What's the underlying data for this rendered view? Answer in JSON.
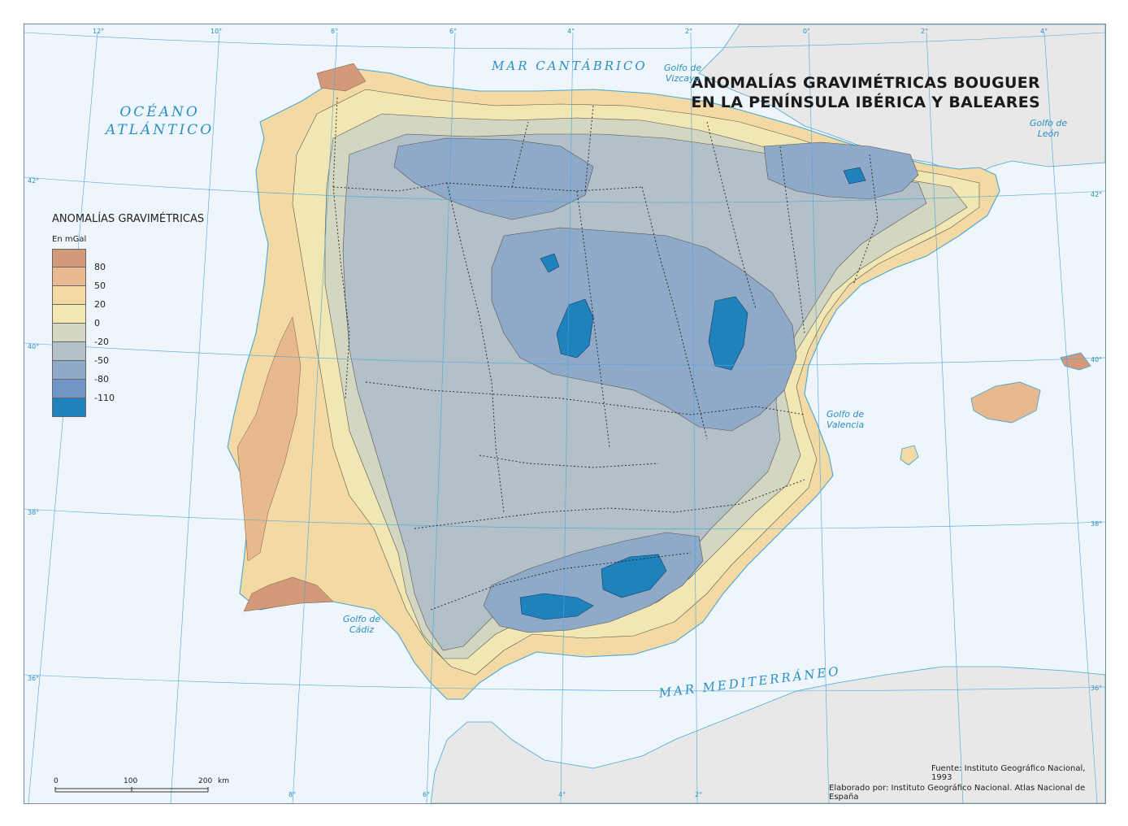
{
  "title": {
    "line1": "ANOMALÍAS GRAVIMÉTRICAS BOUGUER",
    "line2": "EN LA PENÍNSULA IBÉRICA Y BALEARES"
  },
  "seas": {
    "atlantic_line1": "OCÉANO",
    "atlantic_line2": "ATLÁNTICO",
    "cantabrico": "MAR CANTÁBRICO",
    "mediterraneo": "MAR MEDITERRÁNEO"
  },
  "gulfs": {
    "vizcaya_line1": "Golfo de",
    "vizcaya_line2": "Vizcaya",
    "leon_line1": "Golfo de",
    "leon_line2": "León",
    "valencia_line1": "Golfo de",
    "valencia_line2": "Valencia",
    "cadiz_line1": "Golfo de",
    "cadiz_line2": "Cádiz"
  },
  "legend": {
    "title": "ANOMALÍAS GRAVIMÉTRICAS",
    "unit": "En mGal",
    "classes": [
      {
        "color": "#d4997a"
      },
      {
        "color": "#e8b98e"
      },
      {
        "color": "#f3d9a4"
      },
      {
        "color": "#f2e6b3"
      },
      {
        "color": "#d3d6c0"
      },
      {
        "color": "#b3c0c8"
      },
      {
        "color": "#8fa9c8"
      },
      {
        "color": "#6f96c4"
      },
      {
        "color": "#1f82bd"
      }
    ],
    "thresholds": [
      "80",
      "50",
      "20",
      "0",
      "-20",
      "-50",
      "-80",
      "-110"
    ]
  },
  "scale": {
    "labels": [
      "0",
      "100",
      "200"
    ],
    "unit": "km"
  },
  "coordinates": {
    "top": [
      "12°",
      "10°",
      "8°",
      "6°",
      "4°",
      "2°",
      "0°",
      "2°",
      "4°"
    ],
    "bottom": [
      "8°",
      "6°",
      "4°",
      "2°"
    ],
    "left": [
      "42°",
      "40°",
      "38°",
      "36°"
    ],
    "right": [
      "42°",
      "40°",
      "38°",
      "36°"
    ]
  },
  "credits": {
    "source": "Fuente: Instituto Geográfico Nacional, 1993",
    "made_by": "Elaborado por: Instituto Geográfico Nacional. Atlas Nacional de España"
  },
  "colors": {
    "sea": "#eef5fb",
    "foreign_land": "#e8e8e8",
    "water_label": "#2a8fc4"
  }
}
